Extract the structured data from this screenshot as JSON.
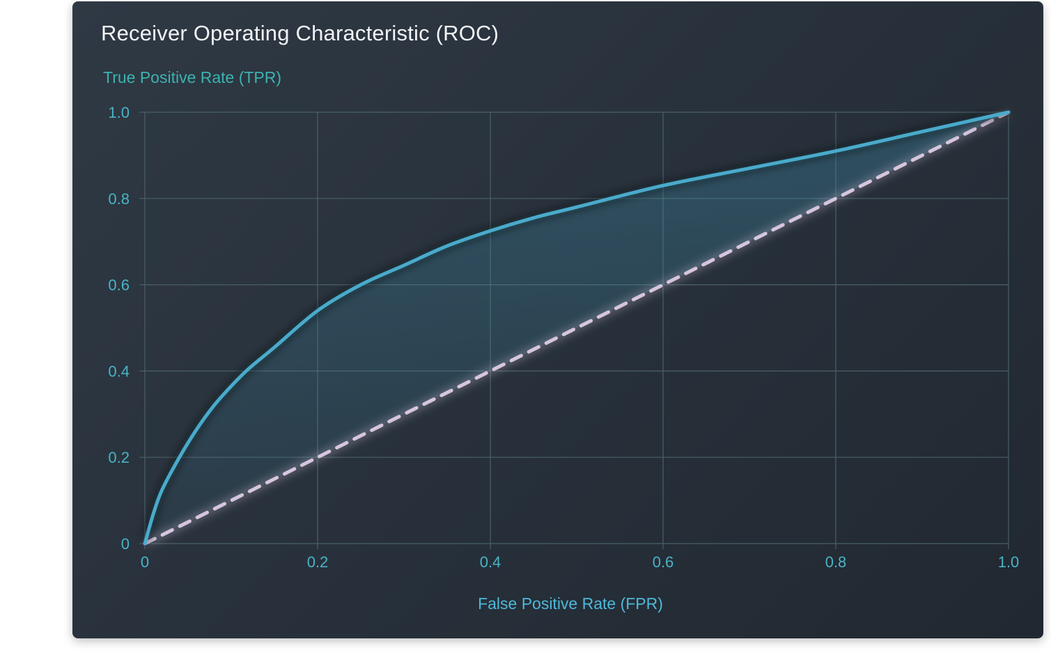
{
  "chart_data": {
    "type": "line",
    "title": "Receiver Operating Characteristic (ROC)",
    "xlabel": "False Positive Rate (FPR)",
    "ylabel": "True Positive Rate (TPR)",
    "xlim": [
      0,
      1
    ],
    "ylim": [
      0,
      1
    ],
    "grid": true,
    "x_ticks": [
      "0",
      "0.2",
      "0.4",
      "0.6",
      "0.8",
      "1.0"
    ],
    "y_ticks": [
      "0",
      "0.2",
      "0.4",
      "0.6",
      "0.8",
      "1.0"
    ],
    "series": [
      {
        "style": "solid",
        "color": "#4aaacb",
        "fill_under": true,
        "x": [
          0,
          0.01,
          0.02,
          0.04,
          0.06,
          0.08,
          0.1,
          0.12,
          0.15,
          0.2,
          0.25,
          0.3,
          0.35,
          0.4,
          0.45,
          0.5,
          0.6,
          0.7,
          0.8,
          0.9,
          1.0
        ],
        "y": [
          0,
          0.07,
          0.125,
          0.2,
          0.265,
          0.32,
          0.365,
          0.405,
          0.455,
          0.54,
          0.6,
          0.645,
          0.69,
          0.725,
          0.755,
          0.78,
          0.83,
          0.87,
          0.91,
          0.955,
          1.0
        ]
      },
      {
        "style": "dashed",
        "color": "#d6c6de",
        "x": [
          0,
          1
        ],
        "y": [
          0,
          1
        ]
      }
    ]
  },
  "colors": {
    "grid": "#4a6067",
    "tick_text": "#49b4c6",
    "ylabel_text": "#3cb3b0",
    "xlabel_text": "#4fb8d8"
  }
}
